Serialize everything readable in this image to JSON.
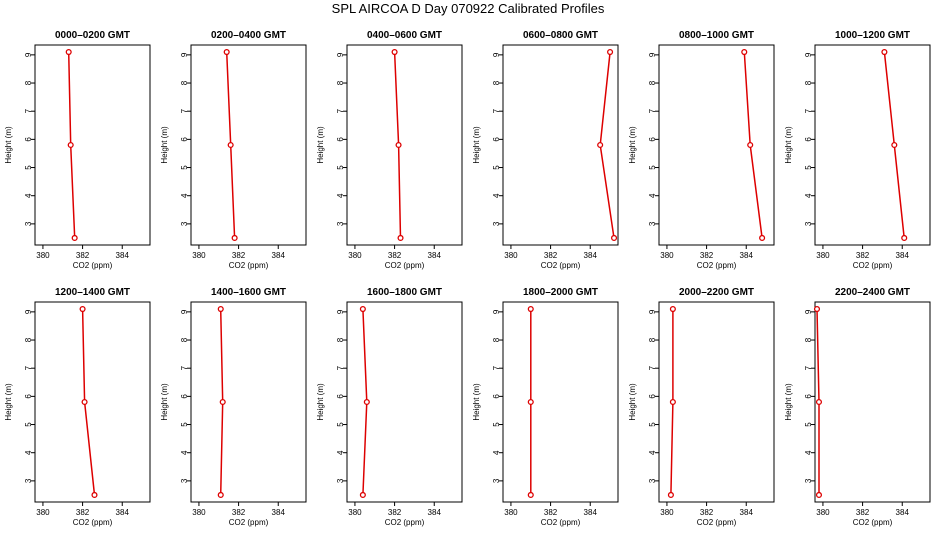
{
  "title": "SPL AIRCOA D  Day 070922  Calibrated Profiles",
  "colors": {
    "series": "#dd0000",
    "axis": "#000000"
  },
  "chart_data": [
    {
      "type": "line",
      "title": "0000–0200 GMT",
      "xlabel": "CO2 (ppm)",
      "ylabel": "Height (m)",
      "xlim": [
        379.6,
        385.4
      ],
      "ylim": [
        2.25,
        9.35
      ],
      "xticks": [
        "380",
        "382",
        "384"
      ],
      "yticks": [
        "3",
        "4",
        "5",
        "6",
        "7",
        "8",
        "9"
      ],
      "grid": false,
      "series": [
        {
          "points": [
            {
              "x": 381.3,
              "y": 9.1
            },
            {
              "x": 381.4,
              "y": 5.8
            },
            {
              "x": 381.6,
              "y": 2.5
            }
          ]
        }
      ]
    },
    {
      "type": "line",
      "title": "0200–0400 GMT",
      "xlabel": "CO2 (ppm)",
      "ylabel": "Height (m)",
      "xlim": [
        379.6,
        385.4
      ],
      "ylim": [
        2.25,
        9.35
      ],
      "xticks": [
        "380",
        "382",
        "384"
      ],
      "yticks": [
        "3",
        "4",
        "5",
        "6",
        "7",
        "8",
        "9"
      ],
      "grid": false,
      "series": [
        {
          "points": [
            {
              "x": 381.4,
              "y": 9.1
            },
            {
              "x": 381.6,
              "y": 5.8
            },
            {
              "x": 381.8,
              "y": 2.5
            }
          ]
        }
      ]
    },
    {
      "type": "line",
      "title": "0400–0600 GMT",
      "xlabel": "CO2 (ppm)",
      "ylabel": "Height (m)",
      "xlim": [
        379.6,
        385.4
      ],
      "ylim": [
        2.25,
        9.35
      ],
      "xticks": [
        "380",
        "382",
        "384"
      ],
      "yticks": [
        "3",
        "4",
        "5",
        "6",
        "7",
        "8",
        "9"
      ],
      "grid": false,
      "series": [
        {
          "points": [
            {
              "x": 382.0,
              "y": 9.1
            },
            {
              "x": 382.2,
              "y": 5.8
            },
            {
              "x": 382.3,
              "y": 2.5
            }
          ]
        }
      ]
    },
    {
      "type": "line",
      "title": "0600–0800 GMT",
      "xlabel": "CO2 (ppm)",
      "ylabel": "Height (m)",
      "xlim": [
        379.6,
        385.4
      ],
      "ylim": [
        2.25,
        9.35
      ],
      "xticks": [
        "380",
        "382",
        "384"
      ],
      "yticks": [
        "3",
        "4",
        "5",
        "6",
        "7",
        "8",
        "9"
      ],
      "grid": false,
      "series": [
        {
          "points": [
            {
              "x": 385.0,
              "y": 9.1
            },
            {
              "x": 384.5,
              "y": 5.8
            },
            {
              "x": 385.2,
              "y": 2.5
            }
          ]
        }
      ]
    },
    {
      "type": "line",
      "title": "0800–1000 GMT",
      "xlabel": "CO2 (ppm)",
      "ylabel": "Height (m)",
      "xlim": [
        379.6,
        385.4
      ],
      "ylim": [
        2.25,
        9.35
      ],
      "xticks": [
        "380",
        "382",
        "384"
      ],
      "yticks": [
        "3",
        "4",
        "5",
        "6",
        "7",
        "8",
        "9"
      ],
      "grid": false,
      "series": [
        {
          "points": [
            {
              "x": 383.9,
              "y": 9.1
            },
            {
              "x": 384.2,
              "y": 5.8
            },
            {
              "x": 384.8,
              "y": 2.5
            }
          ]
        }
      ]
    },
    {
      "type": "line",
      "title": "1000–1200 GMT",
      "xlabel": "CO2 (ppm)",
      "ylabel": "Height (m)",
      "xlim": [
        379.6,
        385.4
      ],
      "ylim": [
        2.25,
        9.35
      ],
      "xticks": [
        "380",
        "382",
        "384"
      ],
      "yticks": [
        "3",
        "4",
        "5",
        "6",
        "7",
        "8",
        "9"
      ],
      "grid": false,
      "series": [
        {
          "points": [
            {
              "x": 383.1,
              "y": 9.1
            },
            {
              "x": 383.6,
              "y": 5.8
            },
            {
              "x": 384.1,
              "y": 2.5
            }
          ]
        }
      ]
    },
    {
      "type": "line",
      "title": "1200–1400 GMT",
      "xlabel": "CO2 (ppm)",
      "ylabel": "Height (m)",
      "xlim": [
        379.6,
        385.4
      ],
      "ylim": [
        2.25,
        9.35
      ],
      "xticks": [
        "380",
        "382",
        "384"
      ],
      "yticks": [
        "3",
        "4",
        "5",
        "6",
        "7",
        "8",
        "9"
      ],
      "grid": false,
      "series": [
        {
          "points": [
            {
              "x": 382.0,
              "y": 9.1
            },
            {
              "x": 382.1,
              "y": 5.8
            },
            {
              "x": 382.6,
              "y": 2.5
            }
          ]
        }
      ]
    },
    {
      "type": "line",
      "title": "1400–1600 GMT",
      "xlabel": "CO2 (ppm)",
      "ylabel": "Height (m)",
      "xlim": [
        379.6,
        385.4
      ],
      "ylim": [
        2.25,
        9.35
      ],
      "xticks": [
        "380",
        "382",
        "384"
      ],
      "yticks": [
        "3",
        "4",
        "5",
        "6",
        "7",
        "8",
        "9"
      ],
      "grid": false,
      "series": [
        {
          "points": [
            {
              "x": 381.1,
              "y": 9.1
            },
            {
              "x": 381.2,
              "y": 5.8
            },
            {
              "x": 381.1,
              "y": 2.5
            }
          ]
        }
      ]
    },
    {
      "type": "line",
      "title": "1600–1800 GMT",
      "xlabel": "CO2 (ppm)",
      "ylabel": "Height (m)",
      "xlim": [
        379.6,
        385.4
      ],
      "ylim": [
        2.25,
        9.35
      ],
      "xticks": [
        "380",
        "382",
        "384"
      ],
      "yticks": [
        "3",
        "4",
        "5",
        "6",
        "7",
        "8",
        "9"
      ],
      "grid": false,
      "series": [
        {
          "points": [
            {
              "x": 380.4,
              "y": 9.1
            },
            {
              "x": 380.6,
              "y": 5.8
            },
            {
              "x": 380.4,
              "y": 2.5
            }
          ]
        }
      ]
    },
    {
      "type": "line",
      "title": "1800–2000 GMT",
      "xlabel": "CO2 (ppm)",
      "ylabel": "Height (m)",
      "xlim": [
        379.6,
        385.4
      ],
      "ylim": [
        2.25,
        9.35
      ],
      "xticks": [
        "380",
        "382",
        "384"
      ],
      "yticks": [
        "3",
        "4",
        "5",
        "6",
        "7",
        "8",
        "9"
      ],
      "grid": false,
      "series": [
        {
          "points": [
            {
              "x": 381.0,
              "y": 9.1
            },
            {
              "x": 381.0,
              "y": 5.8
            },
            {
              "x": 381.0,
              "y": 2.5
            }
          ]
        }
      ]
    },
    {
      "type": "line",
      "title": "2000–2200 GMT",
      "xlabel": "CO2 (ppm)",
      "ylabel": "Height (m)",
      "xlim": [
        379.6,
        385.4
      ],
      "ylim": [
        2.25,
        9.35
      ],
      "xticks": [
        "380",
        "382",
        "384"
      ],
      "yticks": [
        "3",
        "4",
        "5",
        "6",
        "7",
        "8",
        "9"
      ],
      "grid": false,
      "series": [
        {
          "points": [
            {
              "x": 380.3,
              "y": 9.1
            },
            {
              "x": 380.3,
              "y": 5.8
            },
            {
              "x": 380.2,
              "y": 2.5
            }
          ]
        }
      ]
    },
    {
      "type": "line",
      "title": "2200–2400 GMT",
      "xlabel": "CO2 (ppm)",
      "ylabel": "Height (m)",
      "xlim": [
        379.6,
        385.4
      ],
      "ylim": [
        2.25,
        9.35
      ],
      "xticks": [
        "380",
        "382",
        "384"
      ],
      "yticks": [
        "3",
        "4",
        "5",
        "6",
        "7",
        "8",
        "9"
      ],
      "grid": false,
      "series": [
        {
          "points": [
            {
              "x": 379.7,
              "y": 9.1
            },
            {
              "x": 379.8,
              "y": 5.8
            },
            {
              "x": 379.8,
              "y": 2.5
            }
          ]
        }
      ]
    }
  ]
}
